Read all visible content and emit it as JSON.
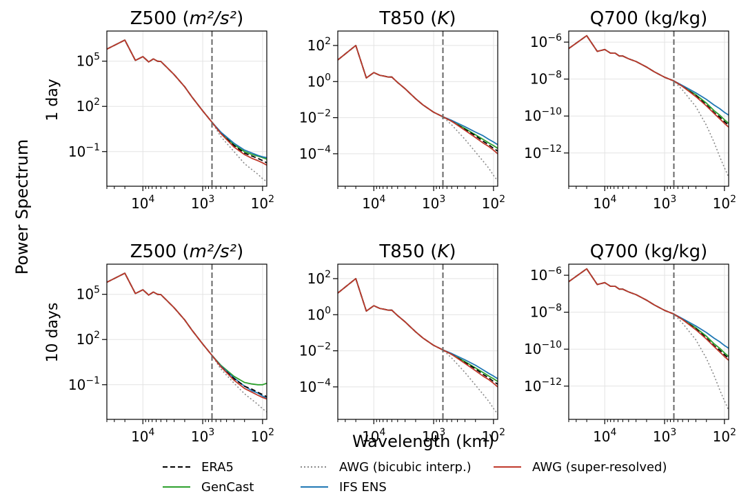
{
  "figure": {
    "ylabel": "Power Spectrum",
    "xlabel": "Wavelength (km)",
    "rows": [
      "1 day",
      "10 days"
    ],
    "cols": [
      {
        "title_main": "Z500 (",
        "title_math": "m²/s²",
        "title_end": ")"
      },
      {
        "title_main": "T850 (",
        "title_math": "K",
        "title_end": ")"
      },
      {
        "title_main": "Q700 (kg/kg)",
        "title_math": "",
        "title_end": ""
      }
    ],
    "x_ticks": [
      {
        "base": "10",
        "exp": "4"
      },
      {
        "base": "10",
        "exp": "3"
      },
      {
        "base": "10",
        "exp": "2"
      }
    ],
    "y_ticks": [
      [
        {
          "base": "10",
          "exp": "5"
        },
        {
          "base": "10",
          "exp": "2"
        },
        {
          "base": "10",
          "exp": "−1"
        }
      ],
      [
        {
          "base": "10",
          "exp": "2"
        },
        {
          "base": "10",
          "exp": "0"
        },
        {
          "base": "10",
          "exp": "−2"
        },
        {
          "base": "10",
          "exp": "−4"
        }
      ],
      [
        {
          "base": "10",
          "exp": "−6"
        },
        {
          "base": "10",
          "exp": "−8"
        },
        {
          "base": "10",
          "exp": "−10"
        },
        {
          "base": "10",
          "exp": "−12"
        }
      ]
    ],
    "legend": [
      {
        "label": "ERA5",
        "color": "#000000",
        "style": "dashed"
      },
      {
        "label": "AWG (bicubic interp.)",
        "color": "#888888",
        "style": "dotted"
      },
      {
        "label": "AWG (super-resolved)",
        "color": "#c0392b",
        "style": "solid"
      },
      {
        "label": "GenCast",
        "color": "#2ca02c",
        "style": "solid"
      },
      {
        "label": "IFS ENS",
        "color": "#1f77b4",
        "style": "solid"
      }
    ]
  },
  "chart_data": [
    {
      "type": "line",
      "variable": "Z500",
      "lead": "1 day",
      "x_scale": "log-reversed",
      "y_scale": "log",
      "xlim": [
        40000,
        85
      ],
      "ylim_log10": [
        -3.3,
        7.0
      ],
      "vline_wavelength_km": 700,
      "x": [
        40000,
        20000,
        13333,
        10000,
        8000,
        6667,
        5714,
        5000,
        4000,
        3000,
        2000,
        1500,
        1000,
        700,
        500,
        300,
        200,
        150,
        120,
        100,
        85
      ],
      "series": [
        {
          "name": "ERA5",
          "y_log10": [
            5.8,
            6.4,
            5.05,
            5.3,
            4.95,
            5.15,
            5.0,
            4.98,
            4.6,
            4.1,
            3.3,
            2.6,
            1.7,
            0.95,
            0.2,
            -0.6,
            -1.1,
            -1.3,
            -1.45,
            -1.6,
            -1.75
          ]
        },
        {
          "name": "AWG (bicubic interp.)",
          "y_log10": [
            5.8,
            6.4,
            5.05,
            5.3,
            4.95,
            5.15,
            5.0,
            4.98,
            4.6,
            4.1,
            3.3,
            2.6,
            1.7,
            0.95,
            0.0,
            -1.0,
            -1.8,
            -2.2,
            -2.5,
            -2.8,
            -3.0
          ]
        },
        {
          "name": "AWG (super-resolved)",
          "y_log10": [
            5.8,
            6.4,
            5.05,
            5.3,
            4.95,
            5.15,
            5.0,
            4.98,
            4.6,
            4.1,
            3.3,
            2.6,
            1.7,
            0.95,
            0.2,
            -0.7,
            -1.2,
            -1.45,
            -1.6,
            -1.75,
            -1.9
          ]
        },
        {
          "name": "GenCast",
          "y_log10": [
            5.8,
            6.4,
            5.05,
            5.3,
            4.95,
            5.15,
            5.0,
            4.98,
            4.6,
            4.1,
            3.3,
            2.6,
            1.7,
            0.95,
            0.25,
            -0.55,
            -1.0,
            -1.2,
            -1.3,
            -1.4,
            -1.5
          ]
        },
        {
          "name": "IFS ENS",
          "y_log10": [
            5.8,
            6.4,
            5.05,
            5.3,
            4.95,
            5.15,
            5.0,
            4.98,
            4.6,
            4.1,
            3.3,
            2.6,
            1.7,
            0.95,
            0.3,
            -0.45,
            -0.9,
            -1.1,
            -1.25,
            -1.35,
            -1.4
          ]
        }
      ]
    },
    {
      "type": "line",
      "variable": "T850",
      "lead": "1 day",
      "x_scale": "log-reversed",
      "y_scale": "log",
      "xlim": [
        40000,
        85
      ],
      "ylim_log10": [
        -5.8,
        2.8
      ],
      "vline_wavelength_km": 700,
      "x": [
        40000,
        20000,
        13333,
        10000,
        8000,
        6667,
        5714,
        5000,
        4000,
        3000,
        2000,
        1500,
        1000,
        700,
        500,
        300,
        200,
        150,
        120,
        100,
        85
      ],
      "series": [
        {
          "name": "ERA5",
          "y_log10": [
            1.2,
            2.0,
            0.2,
            0.5,
            0.35,
            0.3,
            0.25,
            0.25,
            -0.05,
            -0.4,
            -0.95,
            -1.3,
            -1.7,
            -1.95,
            -2.2,
            -2.65,
            -3.0,
            -3.3,
            -3.5,
            -3.7,
            -3.85
          ]
        },
        {
          "name": "AWG (bicubic interp.)",
          "y_log10": [
            1.2,
            2.0,
            0.2,
            0.5,
            0.35,
            0.3,
            0.25,
            0.25,
            -0.05,
            -0.4,
            -0.95,
            -1.3,
            -1.7,
            -1.95,
            -2.4,
            -3.2,
            -3.9,
            -4.4,
            -4.8,
            -5.2,
            -5.5
          ]
        },
        {
          "name": "AWG (super-resolved)",
          "y_log10": [
            1.2,
            2.0,
            0.2,
            0.5,
            0.35,
            0.3,
            0.25,
            0.25,
            -0.05,
            -0.4,
            -0.95,
            -1.3,
            -1.7,
            -1.95,
            -2.2,
            -2.7,
            -3.1,
            -3.4,
            -3.6,
            -3.8,
            -4.0
          ]
        },
        {
          "name": "GenCast",
          "y_log10": [
            1.2,
            2.0,
            0.2,
            0.5,
            0.35,
            0.3,
            0.25,
            0.25,
            -0.05,
            -0.4,
            -0.95,
            -1.3,
            -1.7,
            -1.95,
            -2.2,
            -2.6,
            -2.95,
            -3.2,
            -3.4,
            -3.55,
            -3.7
          ]
        },
        {
          "name": "IFS ENS",
          "y_log10": [
            1.2,
            2.0,
            0.2,
            0.5,
            0.35,
            0.3,
            0.25,
            0.25,
            -0.05,
            -0.4,
            -0.95,
            -1.3,
            -1.7,
            -1.95,
            -2.15,
            -2.5,
            -2.8,
            -3.0,
            -3.2,
            -3.35,
            -3.5
          ]
        }
      ]
    },
    {
      "type": "line",
      "variable": "Q700",
      "lead": "1 day",
      "x_scale": "log-reversed",
      "y_scale": "log",
      "xlim": [
        40000,
        85
      ],
      "ylim_log10": [
        -13.8,
        -5.4
      ],
      "vline_wavelength_km": 700,
      "x": [
        40000,
        20000,
        13333,
        10000,
        8000,
        6667,
        5714,
        5000,
        4000,
        3000,
        2000,
        1500,
        1000,
        700,
        500,
        300,
        200,
        150,
        120,
        100,
        85
      ],
      "series": [
        {
          "name": "ERA5",
          "y_log10": [
            -6.35,
            -5.65,
            -6.5,
            -6.4,
            -6.6,
            -6.6,
            -6.75,
            -6.75,
            -6.9,
            -7.05,
            -7.35,
            -7.6,
            -7.9,
            -8.1,
            -8.4,
            -8.9,
            -9.4,
            -9.8,
            -10.05,
            -10.3,
            -10.5
          ]
        },
        {
          "name": "AWG (bicubic interp.)",
          "y_log10": [
            -6.35,
            -5.65,
            -6.5,
            -6.4,
            -6.6,
            -6.6,
            -6.75,
            -6.75,
            -6.9,
            -7.05,
            -7.35,
            -7.6,
            -7.9,
            -8.1,
            -8.6,
            -9.5,
            -10.5,
            -11.4,
            -12.2,
            -12.8,
            -13.3
          ]
        },
        {
          "name": "AWG (super-resolved)",
          "y_log10": [
            -6.35,
            -5.65,
            -6.5,
            -6.4,
            -6.6,
            -6.6,
            -6.75,
            -6.75,
            -6.9,
            -7.05,
            -7.35,
            -7.6,
            -7.9,
            -8.1,
            -8.4,
            -8.95,
            -9.45,
            -9.85,
            -10.15,
            -10.4,
            -10.6
          ]
        },
        {
          "name": "GenCast",
          "y_log10": [
            -6.35,
            -5.65,
            -6.5,
            -6.4,
            -6.6,
            -6.6,
            -6.75,
            -6.75,
            -6.9,
            -7.05,
            -7.35,
            -7.6,
            -7.9,
            -8.1,
            -8.4,
            -8.85,
            -9.3,
            -9.7,
            -9.95,
            -10.2,
            -10.4
          ]
        },
        {
          "name": "IFS ENS",
          "y_log10": [
            -6.35,
            -5.65,
            -6.5,
            -6.4,
            -6.6,
            -6.6,
            -6.75,
            -6.75,
            -6.9,
            -7.05,
            -7.35,
            -7.6,
            -7.9,
            -8.1,
            -8.35,
            -8.75,
            -9.1,
            -9.4,
            -9.6,
            -9.8,
            -9.95
          ]
        }
      ]
    },
    {
      "type": "line",
      "variable": "Z500",
      "lead": "10 days",
      "x_scale": "log-reversed",
      "y_scale": "log",
      "xlim": [
        40000,
        85
      ],
      "ylim_log10": [
        -3.3,
        7.0
      ],
      "vline_wavelength_km": 700,
      "x": [
        40000,
        20000,
        13333,
        10000,
        8000,
        6667,
        5714,
        5000,
        4000,
        3000,
        2000,
        1500,
        1000,
        700,
        500,
        300,
        200,
        150,
        120,
        100,
        85
      ],
      "series": [
        {
          "name": "ERA5",
          "y_log10": [
            5.8,
            6.4,
            5.05,
            5.3,
            4.95,
            5.15,
            5.0,
            4.98,
            4.6,
            4.1,
            3.3,
            2.6,
            1.7,
            0.95,
            0.2,
            -0.6,
            -1.1,
            -1.3,
            -1.5,
            -1.65,
            -1.8
          ]
        },
        {
          "name": "AWG (bicubic interp.)",
          "y_log10": [
            5.8,
            6.4,
            5.05,
            5.3,
            4.95,
            5.15,
            5.0,
            4.98,
            4.6,
            4.1,
            3.3,
            2.6,
            1.7,
            0.95,
            0.05,
            -0.9,
            -1.6,
            -2.0,
            -2.3,
            -2.6,
            -2.8
          ]
        },
        {
          "name": "AWG (super-resolved)",
          "y_log10": [
            5.8,
            6.4,
            5.05,
            5.3,
            4.95,
            5.15,
            5.0,
            4.98,
            4.6,
            4.1,
            3.3,
            2.6,
            1.7,
            0.95,
            0.2,
            -0.7,
            -1.25,
            -1.5,
            -1.7,
            -1.85,
            -1.95
          ]
        },
        {
          "name": "GenCast",
          "y_log10": [
            5.8,
            6.4,
            5.05,
            5.3,
            4.95,
            5.15,
            5.0,
            4.98,
            4.6,
            4.1,
            3.3,
            2.6,
            1.7,
            0.95,
            0.3,
            -0.45,
            -0.85,
            -0.95,
            -1.0,
            -1.0,
            -0.9
          ]
        },
        {
          "name": "IFS ENS",
          "y_log10": [
            5.8,
            6.4,
            5.05,
            5.3,
            4.95,
            5.15,
            5.0,
            4.98,
            4.6,
            4.1,
            3.3,
            2.6,
            1.7,
            0.95,
            0.25,
            -0.55,
            -1.1,
            -1.4,
            -1.55,
            -1.75,
            -1.9
          ]
        }
      ]
    },
    {
      "type": "line",
      "variable": "T850",
      "lead": "10 days",
      "x_scale": "log-reversed",
      "y_scale": "log",
      "xlim": [
        40000,
        85
      ],
      "ylim_log10": [
        -5.8,
        2.8
      ],
      "vline_wavelength_km": 700,
      "x": [
        40000,
        20000,
        13333,
        10000,
        8000,
        6667,
        5714,
        5000,
        4000,
        3000,
        2000,
        1500,
        1000,
        700,
        500,
        300,
        200,
        150,
        120,
        100,
        85
      ],
      "series": [
        {
          "name": "ERA5",
          "y_log10": [
            1.2,
            2.0,
            0.2,
            0.5,
            0.35,
            0.3,
            0.25,
            0.25,
            -0.05,
            -0.4,
            -0.95,
            -1.3,
            -1.7,
            -1.95,
            -2.2,
            -2.65,
            -3.0,
            -3.3,
            -3.5,
            -3.7,
            -3.85
          ]
        },
        {
          "name": "AWG (bicubic interp.)",
          "y_log10": [
            1.2,
            2.0,
            0.2,
            0.5,
            0.35,
            0.3,
            0.25,
            0.25,
            -0.05,
            -0.4,
            -0.95,
            -1.3,
            -1.7,
            -1.95,
            -2.4,
            -3.2,
            -3.9,
            -4.4,
            -4.8,
            -5.2,
            -5.5
          ]
        },
        {
          "name": "AWG (super-resolved)",
          "y_log10": [
            1.2,
            2.0,
            0.2,
            0.5,
            0.35,
            0.3,
            0.25,
            0.25,
            -0.05,
            -0.4,
            -0.95,
            -1.3,
            -1.7,
            -1.95,
            -2.2,
            -2.7,
            -3.1,
            -3.4,
            -3.6,
            -3.8,
            -4.0
          ]
        },
        {
          "name": "GenCast",
          "y_log10": [
            1.2,
            2.0,
            0.2,
            0.5,
            0.35,
            0.3,
            0.25,
            0.25,
            -0.05,
            -0.4,
            -0.95,
            -1.3,
            -1.7,
            -1.95,
            -2.2,
            -2.6,
            -2.95,
            -3.2,
            -3.4,
            -3.55,
            -3.7
          ]
        },
        {
          "name": "IFS ENS",
          "y_log10": [
            1.2,
            2.0,
            0.2,
            0.5,
            0.35,
            0.3,
            0.25,
            0.25,
            -0.05,
            -0.4,
            -0.95,
            -1.3,
            -1.7,
            -1.95,
            -2.15,
            -2.5,
            -2.8,
            -3.05,
            -3.25,
            -3.4,
            -3.55
          ]
        }
      ]
    },
    {
      "type": "line",
      "variable": "Q700",
      "lead": "10 days",
      "x_scale": "log-reversed",
      "y_scale": "log",
      "xlim": [
        40000,
        85
      ],
      "ylim_log10": [
        -13.8,
        -5.4
      ],
      "vline_wavelength_km": 700,
      "x": [
        40000,
        20000,
        13333,
        10000,
        8000,
        6667,
        5714,
        5000,
        4000,
        3000,
        2000,
        1500,
        1000,
        700,
        500,
        300,
        200,
        150,
        120,
        100,
        85
      ],
      "series": [
        {
          "name": "ERA5",
          "y_log10": [
            -6.35,
            -5.65,
            -6.5,
            -6.4,
            -6.6,
            -6.6,
            -6.75,
            -6.75,
            -6.9,
            -7.05,
            -7.35,
            -7.6,
            -7.9,
            -8.1,
            -8.4,
            -8.9,
            -9.4,
            -9.8,
            -10.05,
            -10.3,
            -10.5
          ]
        },
        {
          "name": "AWG (bicubic interp.)",
          "y_log10": [
            -6.35,
            -5.65,
            -6.5,
            -6.4,
            -6.6,
            -6.6,
            -6.75,
            -6.75,
            -6.9,
            -7.05,
            -7.35,
            -7.6,
            -7.9,
            -8.1,
            -8.6,
            -9.5,
            -10.5,
            -11.4,
            -12.2,
            -12.8,
            -13.3
          ]
        },
        {
          "name": "AWG (super-resolved)",
          "y_log10": [
            -6.35,
            -5.65,
            -6.5,
            -6.4,
            -6.6,
            -6.6,
            -6.75,
            -6.75,
            -6.9,
            -7.05,
            -7.35,
            -7.6,
            -7.9,
            -8.1,
            -8.4,
            -8.95,
            -9.45,
            -9.85,
            -10.15,
            -10.4,
            -10.6
          ]
        },
        {
          "name": "GenCast",
          "y_log10": [
            -6.35,
            -5.65,
            -6.5,
            -6.4,
            -6.6,
            -6.6,
            -6.75,
            -6.75,
            -6.9,
            -7.05,
            -7.35,
            -7.6,
            -7.9,
            -8.1,
            -8.4,
            -8.85,
            -9.3,
            -9.7,
            -9.95,
            -10.2,
            -10.4
          ]
        },
        {
          "name": "IFS ENS",
          "y_log10": [
            -6.35,
            -5.65,
            -6.5,
            -6.4,
            -6.6,
            -6.6,
            -6.75,
            -6.75,
            -6.9,
            -7.05,
            -7.35,
            -7.6,
            -7.9,
            -8.1,
            -8.35,
            -8.75,
            -9.1,
            -9.4,
            -9.6,
            -9.8,
            -9.95
          ]
        }
      ]
    }
  ]
}
